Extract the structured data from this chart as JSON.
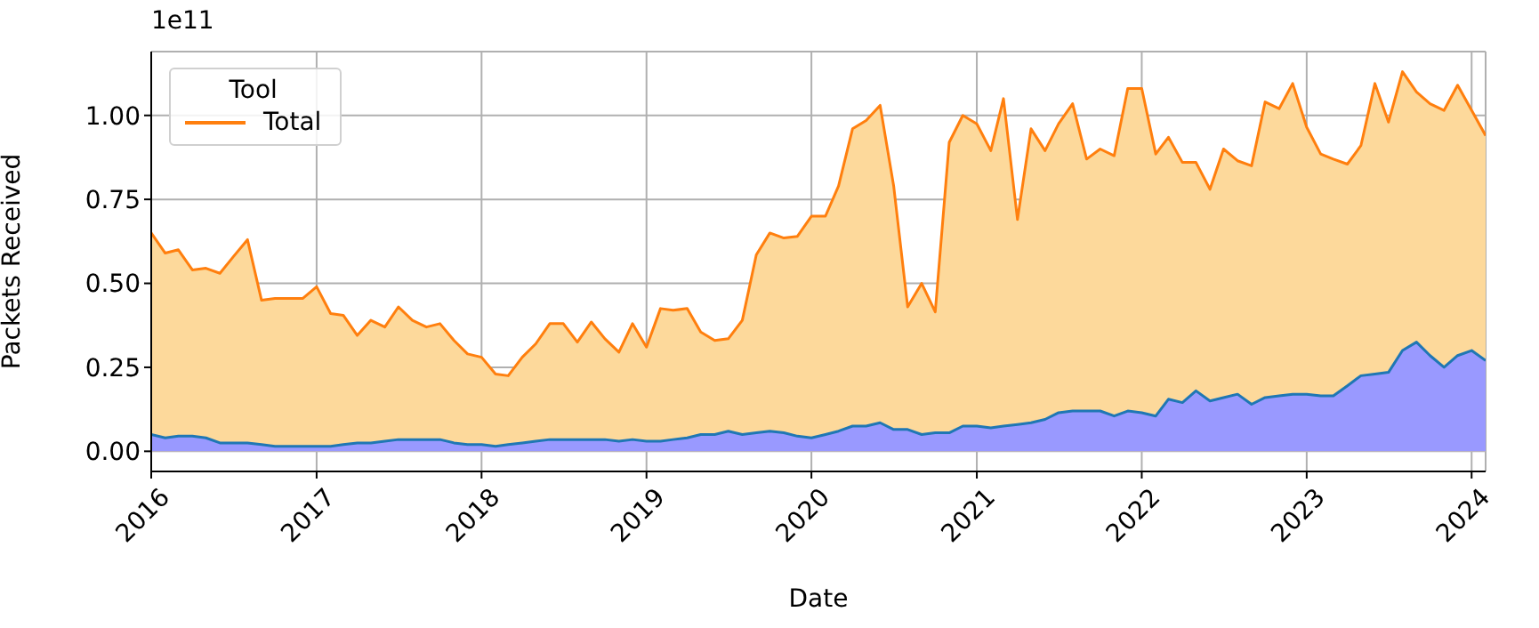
{
  "chart_data": {
    "type": "area",
    "xlabel": "Date",
    "ylabel": "Packets Received",
    "legend_title": "Tool",
    "annotations": [
      "1e11"
    ],
    "x": [
      "2016-01",
      "2016-02",
      "2016-03",
      "2016-04",
      "2016-05",
      "2016-06",
      "2016-07",
      "2016-08",
      "2016-09",
      "2016-10",
      "2016-11",
      "2016-12",
      "2017-01",
      "2017-02",
      "2017-03",
      "2017-04",
      "2017-05",
      "2017-06",
      "2017-07",
      "2017-08",
      "2017-09",
      "2017-10",
      "2017-11",
      "2017-12",
      "2018-01",
      "2018-02",
      "2018-03",
      "2018-04",
      "2018-05",
      "2018-06",
      "2018-07",
      "2018-08",
      "2018-09",
      "2018-10",
      "2018-11",
      "2018-12",
      "2019-01",
      "2019-02",
      "2019-03",
      "2019-04",
      "2019-05",
      "2019-06",
      "2019-07",
      "2019-08",
      "2019-09",
      "2019-10",
      "2019-11",
      "2019-12",
      "2020-01",
      "2020-02",
      "2020-03",
      "2020-04",
      "2020-05",
      "2020-06",
      "2020-07",
      "2020-08",
      "2020-09",
      "2020-10",
      "2020-11",
      "2020-12",
      "2021-01",
      "2021-02",
      "2021-03",
      "2021-04",
      "2021-05",
      "2021-06",
      "2021-07",
      "2021-08",
      "2021-09",
      "2021-10",
      "2021-11",
      "2021-12",
      "2022-01",
      "2022-02",
      "2022-03",
      "2022-04",
      "2022-05",
      "2022-06",
      "2022-07",
      "2022-08",
      "2022-09",
      "2022-10",
      "2022-11",
      "2022-12",
      "2023-01",
      "2023-02",
      "2023-03",
      "2023-04",
      "2023-05",
      "2023-06",
      "2023-07",
      "2023-08",
      "2023-09",
      "2023-10",
      "2023-11",
      "2023-12",
      "2024-01",
      "2024-02"
    ],
    "series": [
      {
        "color": "#1f77b4",
        "values": [
          0.05,
          0.04,
          0.045,
          0.045,
          0.04,
          0.025,
          0.025,
          0.025,
          0.02,
          0.015,
          0.015,
          0.015,
          0.015,
          0.015,
          0.02,
          0.025,
          0.025,
          0.03,
          0.035,
          0.035,
          0.035,
          0.035,
          0.025,
          0.02,
          0.02,
          0.015,
          0.02,
          0.025,
          0.03,
          0.035,
          0.035,
          0.035,
          0.035,
          0.035,
          0.03,
          0.035,
          0.03,
          0.03,
          0.035,
          0.04,
          0.05,
          0.05,
          0.06,
          0.05,
          0.055,
          0.06,
          0.055,
          0.045,
          0.04,
          0.05,
          0.06,
          0.075,
          0.075,
          0.085,
          0.065,
          0.065,
          0.05,
          0.055,
          0.055,
          0.075,
          0.075,
          0.07,
          0.075,
          0.08,
          0.085,
          0.095,
          0.115,
          0.12,
          0.12,
          0.12,
          0.105,
          0.12,
          0.115,
          0.105,
          0.155,
          0.145,
          0.18,
          0.15,
          0.16,
          0.17,
          0.14,
          0.16,
          0.165,
          0.17,
          0.17,
          0.165,
          0.165,
          0.195,
          0.225,
          0.23,
          0.235,
          0.3,
          0.325,
          0.285,
          0.25,
          0.285,
          0.3,
          0.27
        ]
      },
      {
        "name": "Total",
        "color": "#ff7f0e",
        "values": [
          0.65,
          0.59,
          0.6,
          0.54,
          0.545,
          0.53,
          0.58,
          0.63,
          0.45,
          0.455,
          0.455,
          0.455,
          0.49,
          0.41,
          0.405,
          0.345,
          0.39,
          0.37,
          0.43,
          0.39,
          0.37,
          0.38,
          0.33,
          0.29,
          0.28,
          0.23,
          0.225,
          0.28,
          0.32,
          0.38,
          0.38,
          0.325,
          0.385,
          0.335,
          0.295,
          0.38,
          0.31,
          0.425,
          0.42,
          0.425,
          0.355,
          0.33,
          0.335,
          0.39,
          0.585,
          0.65,
          0.635,
          0.64,
          0.7,
          0.7,
          0.79,
          0.96,
          0.985,
          1.03,
          0.79,
          0.43,
          0.5,
          0.415,
          0.92,
          1.0,
          0.975,
          0.895,
          1.05,
          0.69,
          0.96,
          0.895,
          0.975,
          1.035,
          0.87,
          0.9,
          0.88,
          1.08,
          1.08,
          0.885,
          0.935,
          0.86,
          0.86,
          0.78,
          0.9,
          0.865,
          0.85,
          1.04,
          1.02,
          1.095,
          0.965,
          0.885,
          0.87,
          0.855,
          0.91,
          1.095,
          0.98,
          1.13,
          1.07,
          1.035,
          1.015,
          1.09,
          1.015,
          0.94
        ]
      }
    ],
    "xlim": [
      "2016-01",
      "2024-02"
    ],
    "xticks": [
      "2016",
      "2017",
      "2018",
      "2019",
      "2020",
      "2021",
      "2022",
      "2023",
      "2024"
    ],
    "ylim": [
      -0.06,
      1.19
    ],
    "yticks": [
      {
        "value": 0,
        "label": "0.00"
      },
      {
        "value": 0.25,
        "label": "0.25"
      },
      {
        "value": 0.5,
        "label": "0.50"
      },
      {
        "value": 0.75,
        "label": "0.75"
      },
      {
        "value": 1,
        "label": "1.00"
      }
    ],
    "grid": true,
    "legend": "top left"
  }
}
